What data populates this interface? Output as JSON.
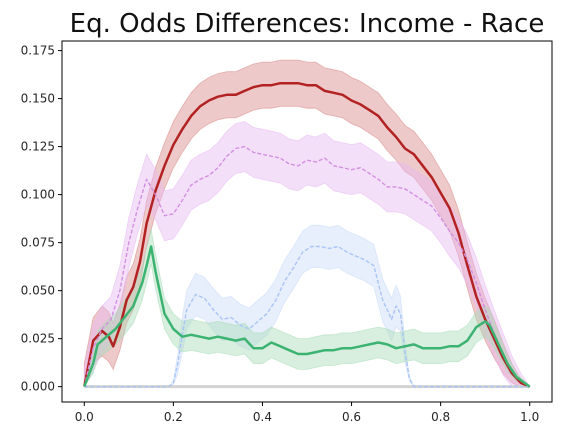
{
  "chart_data": {
    "type": "line",
    "title": "Eq. Odds Differences: Income - Race",
    "xlabel": "",
    "ylabel": "",
    "xlim": [
      -0.05,
      1.05
    ],
    "ylim": [
      -0.008,
      0.18
    ],
    "x_ticks": [
      "0.0",
      "0.2",
      "0.4",
      "0.6",
      "0.8",
      "1.0"
    ],
    "y_ticks": [
      "0.000",
      "0.025",
      "0.050",
      "0.075",
      "0.100",
      "0.125",
      "0.150",
      "0.175"
    ],
    "grid": false,
    "legend": "none",
    "series": [
      {
        "color": "#b22222",
        "fill": "#d98787",
        "style": "solid",
        "points": [
          [
            0.0,
            0.0
          ],
          [
            0.02,
            0.024
          ],
          [
            0.04,
            0.029
          ],
          [
            0.055,
            0.026
          ],
          [
            0.065,
            0.021
          ],
          [
            0.08,
            0.031
          ],
          [
            0.095,
            0.045
          ],
          [
            0.11,
            0.052
          ],
          [
            0.125,
            0.065
          ],
          [
            0.14,
            0.085
          ],
          [
            0.16,
            0.102
          ],
          [
            0.18,
            0.115
          ],
          [
            0.2,
            0.126
          ],
          [
            0.22,
            0.134
          ],
          [
            0.24,
            0.141
          ],
          [
            0.26,
            0.146
          ],
          [
            0.28,
            0.149
          ],
          [
            0.3,
            0.151
          ],
          [
            0.32,
            0.152
          ],
          [
            0.34,
            0.152
          ],
          [
            0.36,
            0.154
          ],
          [
            0.38,
            0.156
          ],
          [
            0.4,
            0.157
          ],
          [
            0.42,
            0.157
          ],
          [
            0.44,
            0.158
          ],
          [
            0.46,
            0.158
          ],
          [
            0.48,
            0.158
          ],
          [
            0.5,
            0.157
          ],
          [
            0.52,
            0.157
          ],
          [
            0.54,
            0.154
          ],
          [
            0.56,
            0.153
          ],
          [
            0.58,
            0.152
          ],
          [
            0.6,
            0.149
          ],
          [
            0.62,
            0.147
          ],
          [
            0.64,
            0.144
          ],
          [
            0.66,
            0.141
          ],
          [
            0.68,
            0.135
          ],
          [
            0.7,
            0.13
          ],
          [
            0.72,
            0.124
          ],
          [
            0.74,
            0.121
          ],
          [
            0.76,
            0.115
          ],
          [
            0.78,
            0.109
          ],
          [
            0.8,
            0.101
          ],
          [
            0.82,
            0.093
          ],
          [
            0.84,
            0.08
          ],
          [
            0.86,
            0.063
          ],
          [
            0.88,
            0.047
          ],
          [
            0.9,
            0.035
          ],
          [
            0.92,
            0.025
          ],
          [
            0.94,
            0.015
          ],
          [
            0.96,
            0.007
          ],
          [
            0.98,
            0.002
          ],
          [
            1.0,
            0.0
          ]
        ],
        "band": [
          0.012,
          0.012,
          0.013,
          0.013,
          0.012,
          0.012,
          0.012,
          0.012,
          0.012,
          0.012,
          0.012,
          0.012,
          0.012,
          0.012,
          0.012,
          0.012,
          0.012,
          0.012,
          0.012,
          0.012,
          0.012,
          0.012,
          0.012,
          0.012,
          0.012,
          0.012,
          0.012,
          0.012,
          0.012,
          0.012,
          0.012,
          0.012,
          0.012,
          0.012,
          0.012,
          0.012,
          0.012,
          0.012,
          0.012,
          0.012,
          0.012,
          0.012,
          0.012,
          0.012,
          0.012,
          0.012,
          0.012,
          0.011,
          0.01,
          0.008,
          0.005,
          0.002,
          0.0
        ]
      },
      {
        "color": "#d28fe0",
        "fill": "#e7b9f2",
        "style": "dashed",
        "points": [
          [
            0.0,
            0.0
          ],
          [
            0.02,
            0.02
          ],
          [
            0.04,
            0.03
          ],
          [
            0.06,
            0.035
          ],
          [
            0.08,
            0.05
          ],
          [
            0.1,
            0.075
          ],
          [
            0.12,
            0.093
          ],
          [
            0.14,
            0.108
          ],
          [
            0.16,
            0.1
          ],
          [
            0.18,
            0.089
          ],
          [
            0.2,
            0.09
          ],
          [
            0.22,
            0.097
          ],
          [
            0.24,
            0.105
          ],
          [
            0.26,
            0.108
          ],
          [
            0.28,
            0.11
          ],
          [
            0.3,
            0.114
          ],
          [
            0.32,
            0.12
          ],
          [
            0.34,
            0.124
          ],
          [
            0.36,
            0.125
          ],
          [
            0.38,
            0.122
          ],
          [
            0.4,
            0.121
          ],
          [
            0.42,
            0.12
          ],
          [
            0.44,
            0.119
          ],
          [
            0.46,
            0.116
          ],
          [
            0.48,
            0.115
          ],
          [
            0.5,
            0.118
          ],
          [
            0.52,
            0.117
          ],
          [
            0.54,
            0.119
          ],
          [
            0.56,
            0.115
          ],
          [
            0.58,
            0.114
          ],
          [
            0.6,
            0.113
          ],
          [
            0.62,
            0.114
          ],
          [
            0.64,
            0.111
          ],
          [
            0.66,
            0.108
          ],
          [
            0.68,
            0.104
          ],
          [
            0.7,
            0.104
          ],
          [
            0.72,
            0.103
          ],
          [
            0.74,
            0.1
          ],
          [
            0.76,
            0.097
          ],
          [
            0.78,
            0.094
          ],
          [
            0.8,
            0.088
          ],
          [
            0.82,
            0.081
          ],
          [
            0.84,
            0.075
          ],
          [
            0.86,
            0.066
          ],
          [
            0.88,
            0.054
          ],
          [
            0.9,
            0.04
          ],
          [
            0.92,
            0.028
          ],
          [
            0.94,
            0.017
          ],
          [
            0.96,
            0.008
          ],
          [
            0.98,
            0.003
          ],
          [
            1.0,
            0.0
          ]
        ],
        "band": [
          0.01,
          0.012,
          0.012,
          0.012,
          0.013,
          0.013,
          0.013,
          0.013,
          0.013,
          0.013,
          0.013,
          0.013,
          0.013,
          0.013,
          0.013,
          0.013,
          0.013,
          0.013,
          0.013,
          0.013,
          0.013,
          0.013,
          0.013,
          0.013,
          0.013,
          0.013,
          0.013,
          0.013,
          0.013,
          0.013,
          0.013,
          0.013,
          0.013,
          0.013,
          0.013,
          0.013,
          0.013,
          0.013,
          0.013,
          0.013,
          0.013,
          0.013,
          0.013,
          0.013,
          0.013,
          0.013,
          0.012,
          0.011,
          0.008,
          0.004,
          0.0
        ]
      },
      {
        "color": "#a9c4f5",
        "fill": "#c9daf8",
        "style": "dashed",
        "points": [
          [
            0.0,
            0.0
          ],
          [
            0.19,
            0.0
          ],
          [
            0.2,
            0.002
          ],
          [
            0.21,
            0.012
          ],
          [
            0.22,
            0.027
          ],
          [
            0.23,
            0.04
          ],
          [
            0.25,
            0.048
          ],
          [
            0.27,
            0.046
          ],
          [
            0.29,
            0.04
          ],
          [
            0.31,
            0.035
          ],
          [
            0.33,
            0.036
          ],
          [
            0.35,
            0.032
          ],
          [
            0.37,
            0.03
          ],
          [
            0.39,
            0.034
          ],
          [
            0.41,
            0.038
          ],
          [
            0.43,
            0.045
          ],
          [
            0.45,
            0.055
          ],
          [
            0.47,
            0.062
          ],
          [
            0.49,
            0.07
          ],
          [
            0.51,
            0.073
          ],
          [
            0.53,
            0.073
          ],
          [
            0.55,
            0.072
          ],
          [
            0.57,
            0.073
          ],
          [
            0.59,
            0.07
          ],
          [
            0.61,
            0.068
          ],
          [
            0.63,
            0.066
          ],
          [
            0.65,
            0.063
          ],
          [
            0.67,
            0.045
          ],
          [
            0.69,
            0.035
          ],
          [
            0.7,
            0.042
          ],
          [
            0.71,
            0.038
          ],
          [
            0.72,
            0.018
          ],
          [
            0.73,
            0.004
          ],
          [
            0.74,
            0.0
          ],
          [
            1.0,
            0.0
          ]
        ],
        "band": [
          0.0,
          0.0,
          0.001,
          0.005,
          0.009,
          0.01,
          0.011,
          0.011,
          0.011,
          0.011,
          0.011,
          0.011,
          0.011,
          0.011,
          0.011,
          0.011,
          0.011,
          0.011,
          0.011,
          0.011,
          0.011,
          0.011,
          0.011,
          0.011,
          0.011,
          0.011,
          0.011,
          0.011,
          0.011,
          0.011,
          0.009,
          0.005,
          0.001,
          0.0,
          0.0
        ]
      },
      {
        "color": "#3cb371",
        "fill": "#a8dcb8",
        "style": "solid",
        "points": [
          [
            0.0,
            0.0
          ],
          [
            0.02,
            0.012
          ],
          [
            0.03,
            0.022
          ],
          [
            0.05,
            0.026
          ],
          [
            0.07,
            0.03
          ],
          [
            0.09,
            0.036
          ],
          [
            0.11,
            0.042
          ],
          [
            0.13,
            0.054
          ],
          [
            0.14,
            0.063
          ],
          [
            0.15,
            0.073
          ],
          [
            0.16,
            0.06
          ],
          [
            0.18,
            0.038
          ],
          [
            0.2,
            0.03
          ],
          [
            0.22,
            0.026
          ],
          [
            0.24,
            0.027
          ],
          [
            0.26,
            0.026
          ],
          [
            0.28,
            0.025
          ],
          [
            0.3,
            0.026
          ],
          [
            0.32,
            0.025
          ],
          [
            0.34,
            0.024
          ],
          [
            0.36,
            0.025
          ],
          [
            0.38,
            0.02
          ],
          [
            0.4,
            0.02
          ],
          [
            0.42,
            0.023
          ],
          [
            0.44,
            0.021
          ],
          [
            0.46,
            0.019
          ],
          [
            0.48,
            0.017
          ],
          [
            0.5,
            0.017
          ],
          [
            0.52,
            0.018
          ],
          [
            0.54,
            0.019
          ],
          [
            0.56,
            0.019
          ],
          [
            0.58,
            0.02
          ],
          [
            0.6,
            0.02
          ],
          [
            0.62,
            0.021
          ],
          [
            0.64,
            0.022
          ],
          [
            0.66,
            0.023
          ],
          [
            0.68,
            0.022
          ],
          [
            0.7,
            0.02
          ],
          [
            0.72,
            0.021
          ],
          [
            0.74,
            0.022
          ],
          [
            0.76,
            0.02
          ],
          [
            0.78,
            0.02
          ],
          [
            0.8,
            0.02
          ],
          [
            0.82,
            0.021
          ],
          [
            0.84,
            0.021
          ],
          [
            0.86,
            0.024
          ],
          [
            0.88,
            0.031
          ],
          [
            0.9,
            0.034
          ],
          [
            0.91,
            0.032
          ],
          [
            0.93,
            0.022
          ],
          [
            0.95,
            0.012
          ],
          [
            0.97,
            0.005
          ],
          [
            1.0,
            0.0
          ]
        ],
        "band": [
          0.0,
          0.005,
          0.007,
          0.008,
          0.008,
          0.009,
          0.009,
          0.009,
          0.009,
          0.009,
          0.009,
          0.008,
          0.008,
          0.008,
          0.008,
          0.008,
          0.008,
          0.008,
          0.008,
          0.008,
          0.008,
          0.008,
          0.008,
          0.008,
          0.008,
          0.008,
          0.008,
          0.008,
          0.008,
          0.008,
          0.008,
          0.008,
          0.008,
          0.008,
          0.008,
          0.008,
          0.008,
          0.008,
          0.008,
          0.008,
          0.008,
          0.008,
          0.008,
          0.008,
          0.008,
          0.008,
          0.008,
          0.008,
          0.008,
          0.006,
          0.004,
          0.002,
          0.0
        ]
      },
      {
        "color": "#d3d3d3",
        "fill": "none",
        "style": "solid",
        "points": [
          [
            0.0,
            0.0
          ],
          [
            1.0,
            0.0
          ]
        ],
        "band": [
          0.0,
          0.0
        ]
      }
    ]
  }
}
